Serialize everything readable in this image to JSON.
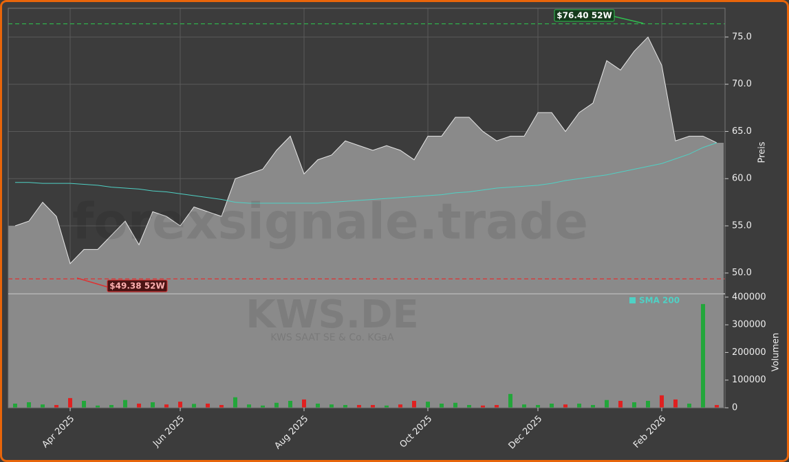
{
  "chart_data": {
    "type": "area",
    "watermark": "forexsignale.trade",
    "symbol": "KWS.DE",
    "company": "KWS SAAT SE & Co. KGaA",
    "categories": [
      null,
      null,
      null,
      null,
      "Apr 2025",
      null,
      null,
      null,
      null,
      null,
      null,
      null,
      "Jun 2025",
      null,
      null,
      null,
      null,
      null,
      null,
      null,
      null,
      "Aug 2025",
      null,
      null,
      null,
      null,
      null,
      null,
      null,
      null,
      "Oct 2025",
      null,
      null,
      null,
      null,
      null,
      null,
      null,
      "Dec 2025",
      null,
      null,
      null,
      null,
      null,
      null,
      null,
      null,
      "Feb 2026",
      null,
      null,
      null,
      null
    ],
    "series": [
      {
        "name": "Preis",
        "color": "#8a8a8a",
        "values": [
          55,
          55.5,
          57.5,
          56,
          51,
          52.5,
          52.5,
          54,
          55.5,
          53,
          56.5,
          56,
          55,
          57,
          56.5,
          56,
          60,
          60.5,
          61,
          63,
          64.5,
          60.5,
          62,
          62.5,
          64,
          63.5,
          63,
          63.5,
          63,
          62,
          64.5,
          64.5,
          66.5,
          66.5,
          65,
          64,
          64.5,
          64.5,
          67,
          67,
          65,
          67,
          68,
          72.5,
          71.5,
          73.5,
          75,
          72,
          64,
          64.5,
          64.5,
          63.8
        ]
      },
      {
        "name": "SMA 200",
        "color": "#4fd1c5",
        "values": [
          59.6,
          59.6,
          59.5,
          59.5,
          59.5,
          59.4,
          59.3,
          59.1,
          59,
          58.9,
          58.7,
          58.6,
          58.4,
          58.2,
          58,
          57.8,
          57.5,
          57.4,
          57.4,
          57.4,
          57.4,
          57.4,
          57.4,
          57.5,
          57.6,
          57.7,
          57.8,
          57.9,
          58,
          58.1,
          58.2,
          58.3,
          58.5,
          58.6,
          58.8,
          59,
          59.1,
          59.2,
          59.3,
          59.5,
          59.8,
          60,
          60.2,
          60.4,
          60.7,
          61,
          61.3,
          61.6,
          62.1,
          62.6,
          63.3,
          63.8
        ]
      }
    ],
    "volume": {
      "name": "Volumen",
      "up_color": "#22a63a",
      "down_color": "#e02020",
      "values": [
        15000,
        20000,
        12000,
        10000,
        35000,
        25000,
        8000,
        10000,
        28000,
        15000,
        20000,
        12000,
        22000,
        14000,
        15000,
        10000,
        38000,
        12000,
        8000,
        18000,
        25000,
        30000,
        15000,
        12000,
        10000,
        10000,
        10000,
        8000,
        12000,
        25000,
        22000,
        15000,
        18000,
        10000,
        8000,
        10000,
        50000,
        12000,
        10000,
        15000,
        12000,
        15000,
        10000,
        28000,
        25000,
        20000,
        25000,
        45000,
        30000,
        15000,
        375000,
        10000
      ],
      "ylim": [
        0,
        412000
      ],
      "yticks": [
        0,
        100000,
        200000,
        300000,
        400000
      ]
    },
    "ylabel": "Preis",
    "ylim": [
      47.8,
      78.05
    ],
    "yticks": [
      {
        "value": 50,
        "label": "50.0"
      },
      {
        "value": 55,
        "label": "55.0"
      },
      {
        "value": 60,
        "label": "60.0"
      },
      {
        "value": 65,
        "label": "65.0"
      },
      {
        "value": 70,
        "label": "70.0"
      },
      {
        "value": 75,
        "label": "75.0"
      }
    ],
    "high": {
      "value": 76.4,
      "label": "$76.40 52W",
      "color": "#2fbf4f"
    },
    "low": {
      "value": 49.38,
      "label": "$49.38 52W",
      "color": "#e03030"
    },
    "grid": true
  }
}
